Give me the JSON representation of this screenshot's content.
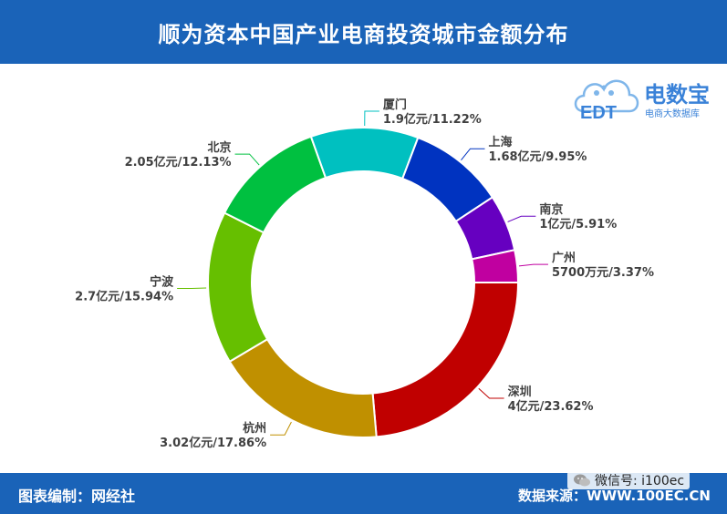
{
  "title": "顺为资本中国产业电商投资城市金额分布",
  "footer": {
    "credit": "图表编制：网经社",
    "source": "数据来源：WWW.100EC.CN",
    "wechat": "微信号: i100ec"
  },
  "brand": {
    "name": "电数宝",
    "subtitle": "电商大数据库",
    "logo_text": "EDT"
  },
  "chart_data": {
    "type": "pie",
    "donut": true,
    "slices": [
      {
        "name": "深圳",
        "value": 4,
        "display": "4亿元/23.62%",
        "percent": 23.62,
        "color": "#c00000"
      },
      {
        "name": "杭州",
        "value": 3.02,
        "display": "3.02亿元/17.86%",
        "percent": 17.86,
        "color": "#c09000"
      },
      {
        "name": "宁波",
        "value": 2.7,
        "display": "2.7亿元/15.94%",
        "percent": 15.94,
        "color": "#66bf00"
      },
      {
        "name": "北京",
        "value": 2.05,
        "display": "2.05亿元/12.13%",
        "percent": 12.13,
        "color": "#00c040"
      },
      {
        "name": "厦门",
        "value": 1.9,
        "display": "1.9亿元/11.22%",
        "percent": 11.22,
        "color": "#00c0c0"
      },
      {
        "name": "上海",
        "value": 1.68,
        "display": "1.68亿元/9.95%",
        "percent": 9.95,
        "color": "#0033c0"
      },
      {
        "name": "南京",
        "value": 1,
        "display": "1亿元/5.91%",
        "percent": 5.91,
        "color": "#6600c0"
      },
      {
        "name": "广州",
        "value": 0.57,
        "display": "5700万元/3.37%",
        "percent": 3.37,
        "color": "#c000a0"
      }
    ]
  }
}
